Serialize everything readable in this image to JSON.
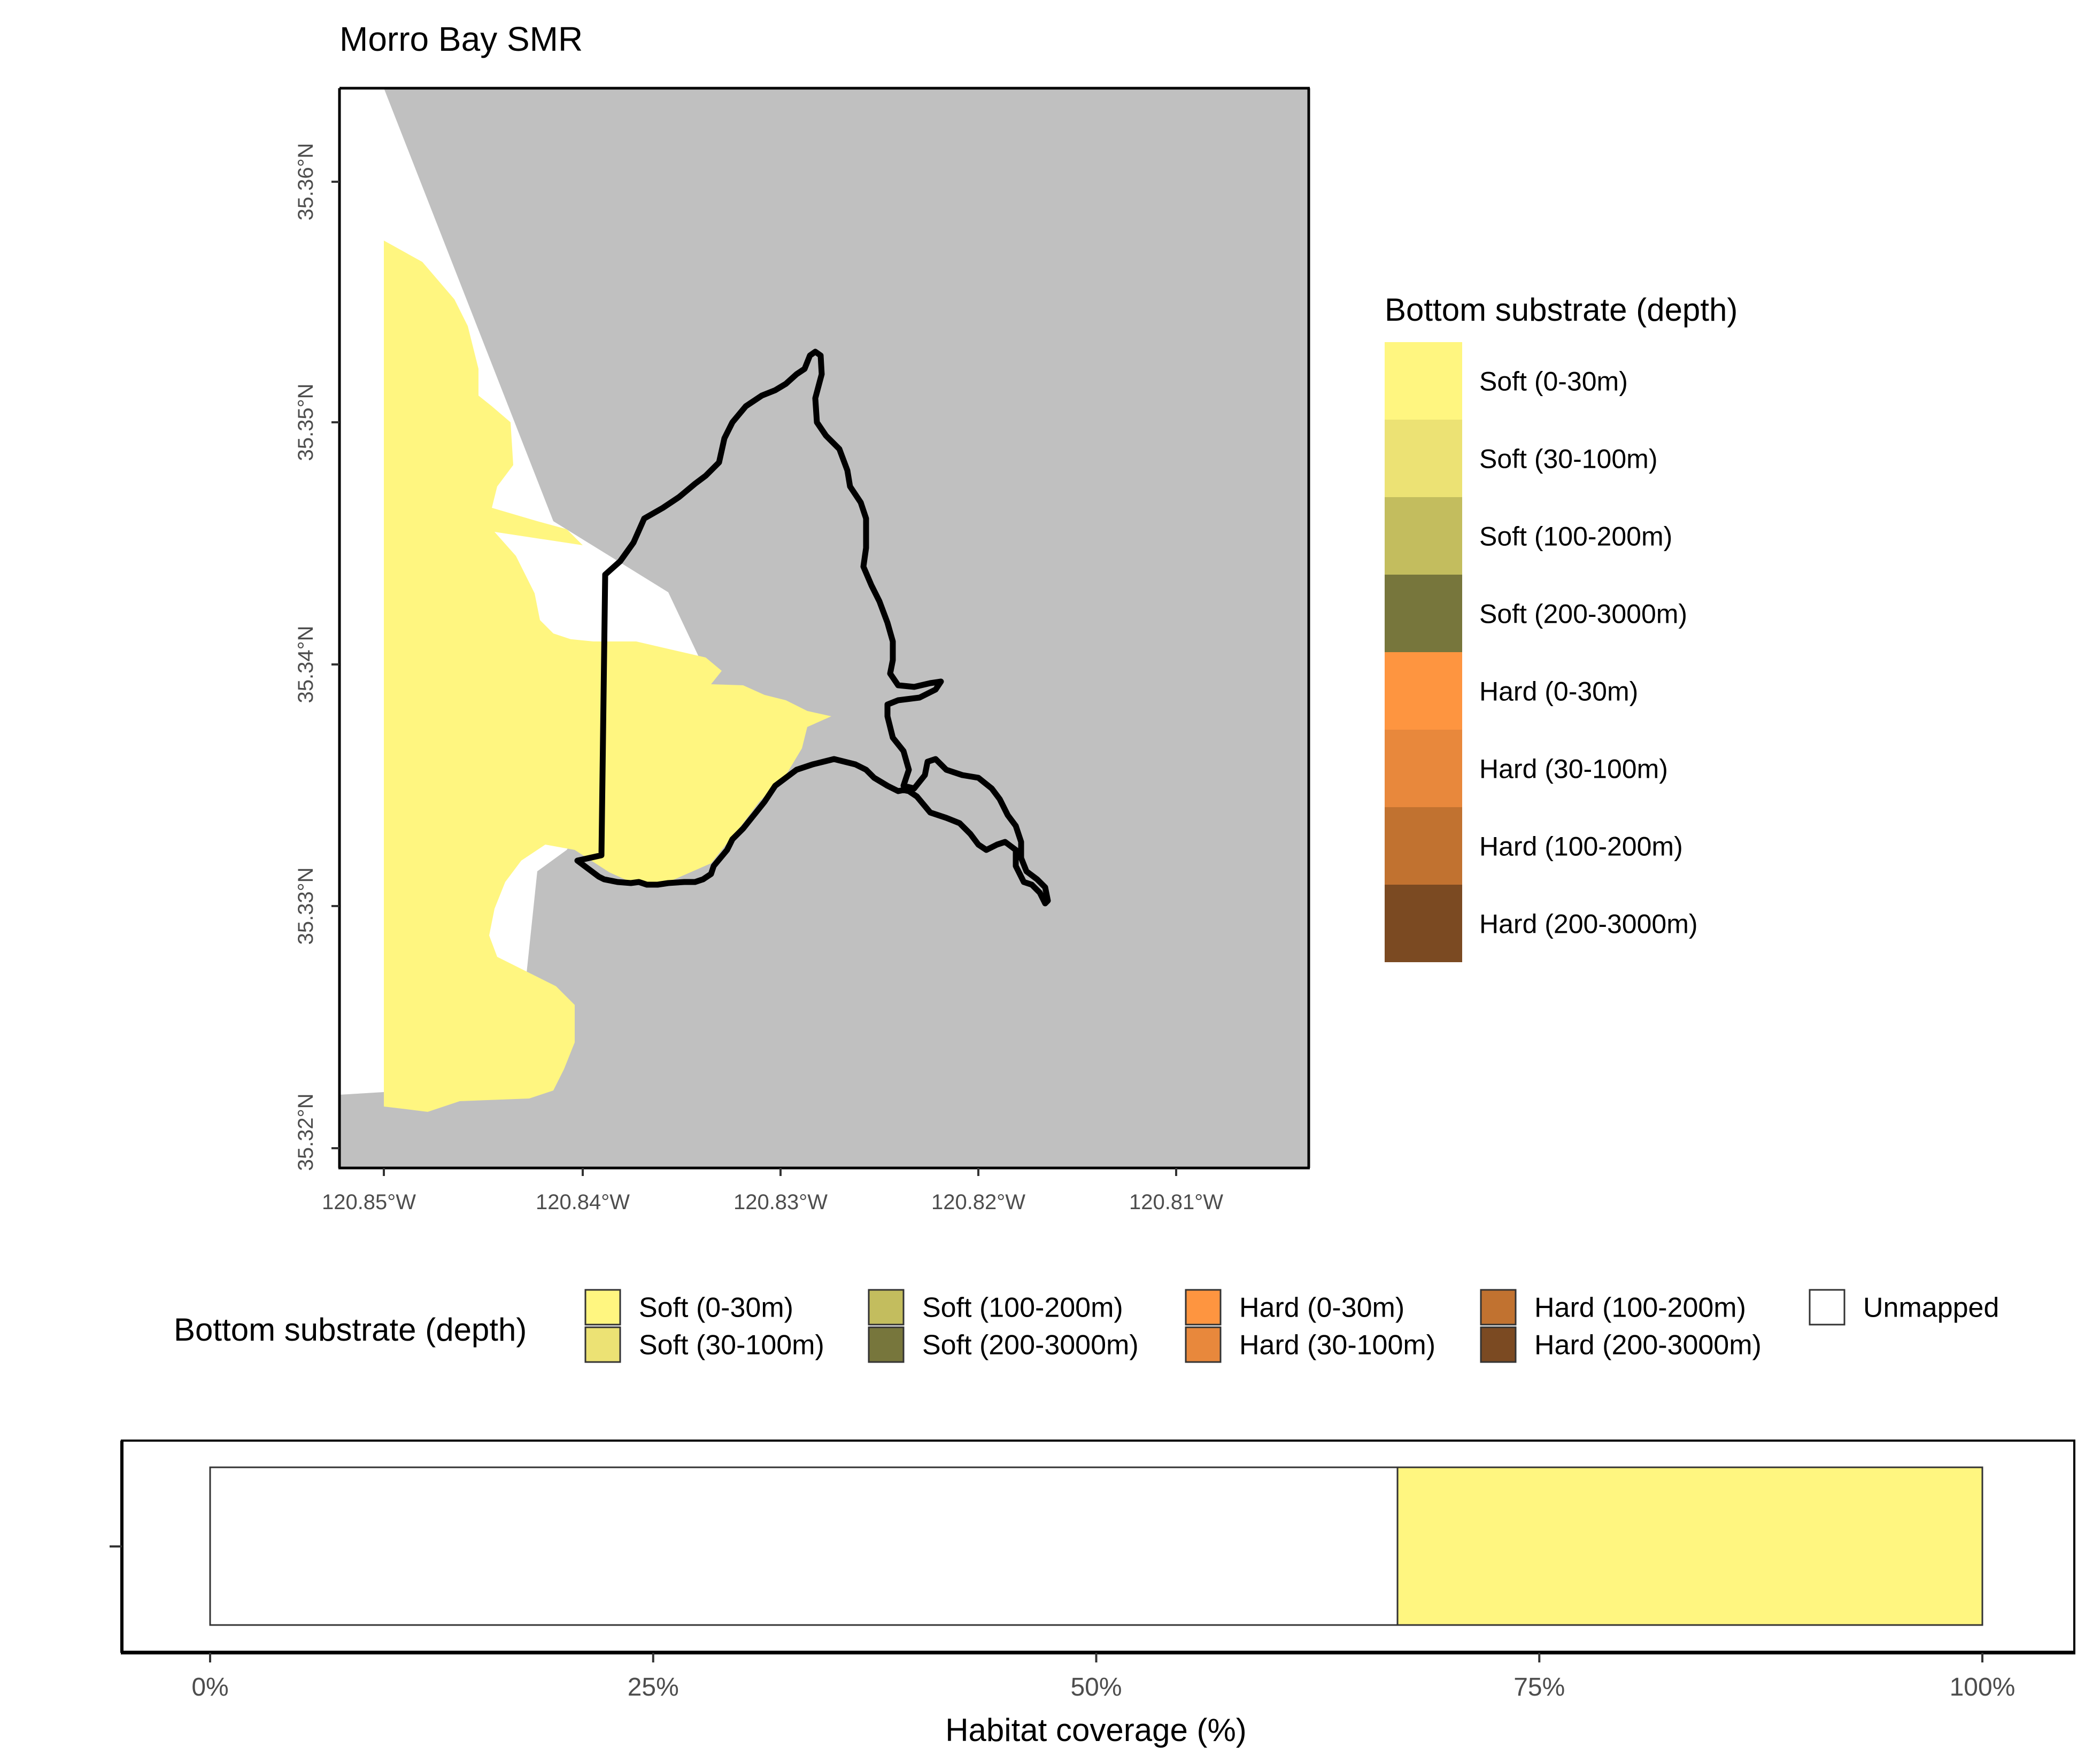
{
  "title": "Morro Bay SMR",
  "map": {
    "y_ticks": [
      "35.36°N",
      "35.35°N",
      "35.34°N",
      "35.33°N",
      "35.32°N"
    ],
    "x_ticks": [
      "120.85°W",
      "120.84°W",
      "120.83°W",
      "120.82°W",
      "120.81°W"
    ],
    "colors": {
      "land": "#c0c0c0",
      "unmapped_water": "#ffffff",
      "soft_0_30": "#fff680",
      "boundary": "#000000"
    }
  },
  "legend_right": {
    "title": "Bottom substrate (depth)",
    "items": [
      {
        "label": "Soft (0-30m)",
        "color": "#fff680"
      },
      {
        "label": "Soft (30-100m)",
        "color": "#ece274"
      },
      {
        "label": "Soft (100-200m)",
        "color": "#c3bd5e"
      },
      {
        "label": "Soft (200-3000m)",
        "color": "#77763c"
      },
      {
        "label": "Hard (0-30m)",
        "color": "#fe9540"
      },
      {
        "label": "Hard (30-100m)",
        "color": "#e8883c"
      },
      {
        "label": "Hard (100-200m)",
        "color": "#c17230"
      },
      {
        "label": "Hard (200-3000m)",
        "color": "#7b4a22"
      }
    ]
  },
  "legend_bottom": {
    "title": "Bottom substrate (depth)",
    "items": [
      {
        "label": "Soft (0-30m)",
        "color": "#fff680"
      },
      {
        "label": "Soft (30-100m)",
        "color": "#ece274"
      },
      {
        "label": "Soft (100-200m)",
        "color": "#c3bd5e"
      },
      {
        "label": "Soft (200-3000m)",
        "color": "#77763c"
      },
      {
        "label": "Hard (0-30m)",
        "color": "#fe9540"
      },
      {
        "label": "Hard (30-100m)",
        "color": "#e8883c"
      },
      {
        "label": "Hard (100-200m)",
        "color": "#c17230"
      },
      {
        "label": "Hard (200-3000m)",
        "color": "#7b4a22"
      },
      {
        "label": "Unmapped",
        "color": "#ffffff"
      }
    ]
  },
  "chart_data": {
    "type": "bar",
    "orientation": "horizontal",
    "stacked": true,
    "xlabel": "Habitat coverage (%)",
    "x_ticks": [
      "0%",
      "25%",
      "50%",
      "75%",
      "100%"
    ],
    "xlim": [
      0,
      100
    ],
    "series": [
      {
        "name": "Unmapped",
        "value": 67,
        "color": "#ffffff"
      },
      {
        "name": "Soft (0-30m)",
        "value": 33,
        "color": "#fff680"
      }
    ]
  }
}
